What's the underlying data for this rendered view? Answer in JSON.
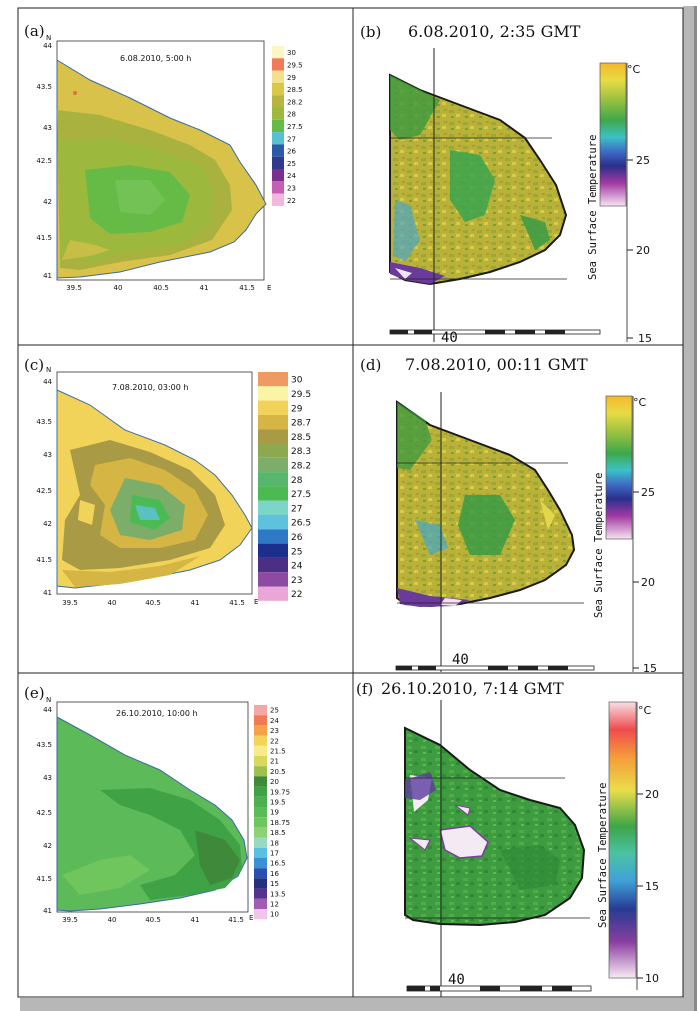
{
  "panels": [
    {
      "id": "a",
      "label": "(a)",
      "timestamp": "6.08.2010, 5:00 h",
      "north": "N",
      "east": "E",
      "y_ticks": [
        "44",
        "43.5",
        "43",
        "42.5",
        "42",
        "41.5",
        "41"
      ],
      "x_ticks": [
        "39.5",
        "40",
        "40.5",
        "41",
        "41.5"
      ],
      "legend": [
        {
          "label": "30",
          "color": "#fbf6c4"
        },
        {
          "label": "29.5",
          "color": "#f07a5a"
        },
        {
          "label": "29",
          "color": "#f2e08a"
        },
        {
          "label": "28.5",
          "color": "#d9c74a"
        },
        {
          "label": "28.2",
          "color": "#b8b441"
        },
        {
          "label": "28",
          "color": "#9cb93e"
        },
        {
          "label": "27.5",
          "color": "#66bb46"
        },
        {
          "label": "27",
          "color": "#59c0d0"
        },
        {
          "label": "26",
          "color": "#2b5aa8"
        },
        {
          "label": "25",
          "color": "#2f3a8e"
        },
        {
          "label": "24",
          "color": "#7b2f8f"
        },
        {
          "label": "23",
          "color": "#c35fb5"
        },
        {
          "label": "22",
          "color": "#f2b7df"
        }
      ]
    },
    {
      "id": "b",
      "label": "(b)",
      "timestamp": "6.08.2010, 2:35 GMT",
      "unit": "°C",
      "colorbar_ticks": [
        "25",
        "20",
        "15"
      ],
      "colorbar_title": "Sea Surface Temperature",
      "lon_label": "40"
    },
    {
      "id": "c",
      "label": "(c)",
      "timestamp": "7.08.2010, 03:00 h",
      "north": "N",
      "east": "E",
      "y_ticks": [
        "44",
        "43.5",
        "43",
        "42.5",
        "42",
        "41.5",
        "41"
      ],
      "x_ticks": [
        "39.5",
        "40",
        "40.5",
        "41",
        "41.5"
      ],
      "legend": [
        {
          "label": "30",
          "color": "#ef9a63"
        },
        {
          "label": "29.5",
          "color": "#fbf4a6"
        },
        {
          "label": "29",
          "color": "#f1d35a"
        },
        {
          "label": "28.7",
          "color": "#d5b543"
        },
        {
          "label": "28.5",
          "color": "#a99a45"
        },
        {
          "label": "28.3",
          "color": "#8ea84f"
        },
        {
          "label": "28.2",
          "color": "#7cae6a"
        },
        {
          "label": "28",
          "color": "#58b66c"
        },
        {
          "label": "27.5",
          "color": "#4cba52"
        },
        {
          "label": "27",
          "color": "#7bd5c8"
        },
        {
          "label": "26.5",
          "color": "#5fc2dd"
        },
        {
          "label": "26",
          "color": "#2f79c4"
        },
        {
          "label": "25",
          "color": "#1d2f8c"
        },
        {
          "label": "24",
          "color": "#4b2f86"
        },
        {
          "label": "23",
          "color": "#8c4aa3"
        },
        {
          "label": "22",
          "color": "#e9a6d6"
        }
      ]
    },
    {
      "id": "d",
      "label": "(d)",
      "timestamp": "7.08.2010, 00:11 GMT",
      "unit": "°C",
      "colorbar_ticks": [
        "25",
        "20",
        "15"
      ],
      "colorbar_title": "Sea Surface Temperature",
      "lon_label": "40"
    },
    {
      "id": "e",
      "label": "(e)",
      "timestamp": "26.10.2010, 10:00 h",
      "north": "N",
      "east": "E",
      "y_ticks": [
        "44",
        "43.5",
        "43",
        "42.5",
        "42",
        "41.5",
        "41"
      ],
      "x_ticks": [
        "39.5",
        "40",
        "40.5",
        "41",
        "41.5"
      ],
      "legend": [
        {
          "label": "25",
          "color": "#f4a7a7"
        },
        {
          "label": "24",
          "color": "#f07a52"
        },
        {
          "label": "23",
          "color": "#f4a14a"
        },
        {
          "label": "22",
          "color": "#f5d35a"
        },
        {
          "label": "21.5",
          "color": "#f6ec8e"
        },
        {
          "label": "21",
          "color": "#d8d95a"
        },
        {
          "label": "20.5",
          "color": "#9fc04c"
        },
        {
          "label": "20",
          "color": "#3f8a3a"
        },
        {
          "label": "19.75",
          "color": "#3fa346"
        },
        {
          "label": "19.5",
          "color": "#4bb04f"
        },
        {
          "label": "19",
          "color": "#5cba59"
        },
        {
          "label": "18.75",
          "color": "#6fc65c"
        },
        {
          "label": "18.5",
          "color": "#8fd075"
        },
        {
          "label": "18",
          "color": "#9ad8c0"
        },
        {
          "label": "17",
          "color": "#58c1e0"
        },
        {
          "label": "16.5",
          "color": "#3b8fd6"
        },
        {
          "label": "16",
          "color": "#2a4fb0"
        },
        {
          "label": "15",
          "color": "#23307d"
        },
        {
          "label": "13.5",
          "color": "#55328c"
        },
        {
          "label": "12",
          "color": "#a05cb3"
        },
        {
          "label": "10",
          "color": "#f0c5e7"
        }
      ]
    },
    {
      "id": "f",
      "label": "(f)",
      "timestamp": "26.10.2010, 7:14 GMT",
      "unit": "°C",
      "colorbar_ticks": [
        "20",
        "15",
        "10"
      ],
      "colorbar_title": "Sea Surface Temperature",
      "lon_label": "40"
    }
  ]
}
